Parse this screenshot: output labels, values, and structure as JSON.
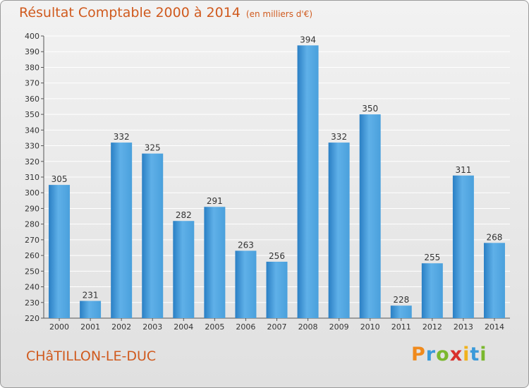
{
  "header": {
    "title": "Résultat Comptable 2000 à 2014",
    "unit": "(en milliers d'€)"
  },
  "footer": {
    "city": "CHâTILLON-LE-DUC",
    "logo": [
      "P",
      "r",
      "o",
      "x",
      "i",
      "t",
      "i"
    ]
  },
  "colors": {
    "title": "#d05a1e",
    "bar_light": "#5fb0e8",
    "bar_dark": "#2a7fc4",
    "grid": "#ffffff",
    "logo": [
      "#f08a1c",
      "#3a9ad9",
      "#7bb82e",
      "#d9302c",
      "#f0b21c",
      "#3a9ad9",
      "#7bb82e"
    ]
  },
  "chart_data": {
    "type": "bar",
    "title": "Résultat Comptable 2000 à 2014",
    "xlabel": "",
    "ylabel": "",
    "ylim": [
      220,
      400
    ],
    "ytick_step": 10,
    "grid": true,
    "categories": [
      "2000",
      "2001",
      "2002",
      "2003",
      "2004",
      "2005",
      "2006",
      "2007",
      "2008",
      "2009",
      "2010",
      "2011",
      "2012",
      "2013",
      "2014"
    ],
    "values": [
      305,
      231,
      332,
      325,
      282,
      291,
      263,
      256,
      394,
      332,
      350,
      228,
      255,
      311,
      268
    ]
  }
}
